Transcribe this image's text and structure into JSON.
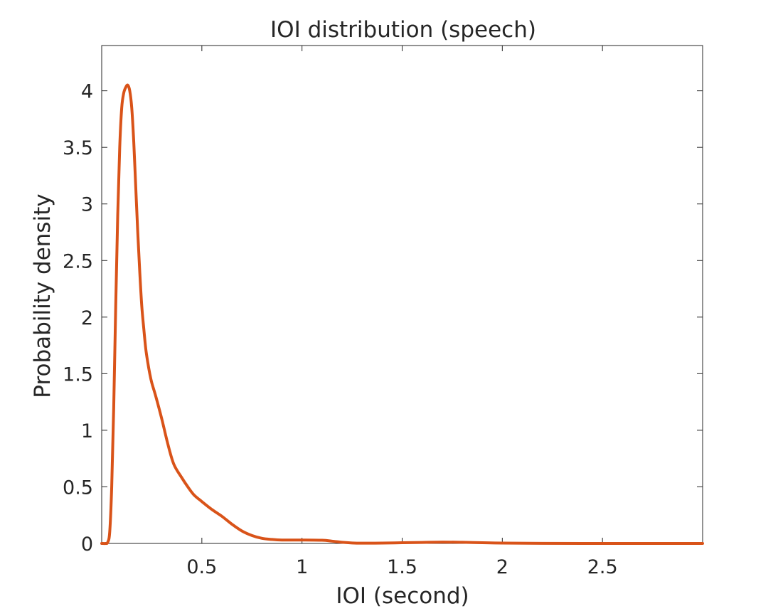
{
  "chart_data": {
    "type": "line",
    "title": "IOI distribution (speech)",
    "xlabel": "IOI (second)",
    "ylabel": "Probability density",
    "xlim": [
      0.0,
      3.0
    ],
    "ylim": [
      0,
      4.4
    ],
    "xticks": [
      0.5,
      1,
      1.5,
      2,
      2.5
    ],
    "xtick_labels": [
      "0.5",
      "1",
      "1.5",
      "2",
      "2.5"
    ],
    "yticks": [
      0,
      0.5,
      1,
      1.5,
      2,
      2.5,
      3,
      3.5,
      4
    ],
    "ytick_labels": [
      "0",
      "0.5",
      "1",
      "1.5",
      "2",
      "2.5",
      "3",
      "3.5",
      "4"
    ],
    "grid": false,
    "line_color": "#D95319",
    "series": [
      {
        "x": [
          0.0,
          0.02,
          0.03,
          0.04,
          0.05,
          0.06,
          0.07,
          0.08,
          0.09,
          0.1,
          0.11,
          0.12,
          0.13,
          0.14,
          0.15,
          0.16,
          0.17,
          0.18,
          0.19,
          0.2,
          0.21,
          0.22,
          0.23,
          0.24,
          0.25,
          0.27,
          0.3,
          0.33,
          0.36,
          0.4,
          0.43,
          0.46,
          0.5,
          0.55,
          0.6,
          0.65,
          0.7,
          0.75,
          0.8,
          0.85,
          0.9,
          1.0,
          1.1,
          1.15,
          1.2,
          1.25,
          1.3,
          1.4,
          1.5,
          1.6,
          1.7,
          1.8,
          1.9,
          2.0,
          2.2,
          2.4,
          2.6,
          2.8,
          3.0
        ],
        "y": [
          0.0,
          0.0,
          0.01,
          0.1,
          0.5,
          1.2,
          2.1,
          2.9,
          3.5,
          3.85,
          3.98,
          4.03,
          4.05,
          4.0,
          3.85,
          3.55,
          3.15,
          2.75,
          2.4,
          2.1,
          1.9,
          1.72,
          1.6,
          1.5,
          1.42,
          1.3,
          1.1,
          0.88,
          0.7,
          0.58,
          0.5,
          0.43,
          0.37,
          0.3,
          0.24,
          0.17,
          0.11,
          0.07,
          0.045,
          0.035,
          0.03,
          0.03,
          0.028,
          0.02,
          0.01,
          0.004,
          0.002,
          0.003,
          0.006,
          0.009,
          0.012,
          0.01,
          0.006,
          0.003,
          0.001,
          0.0,
          0.0,
          0.0,
          0.0
        ]
      }
    ]
  }
}
